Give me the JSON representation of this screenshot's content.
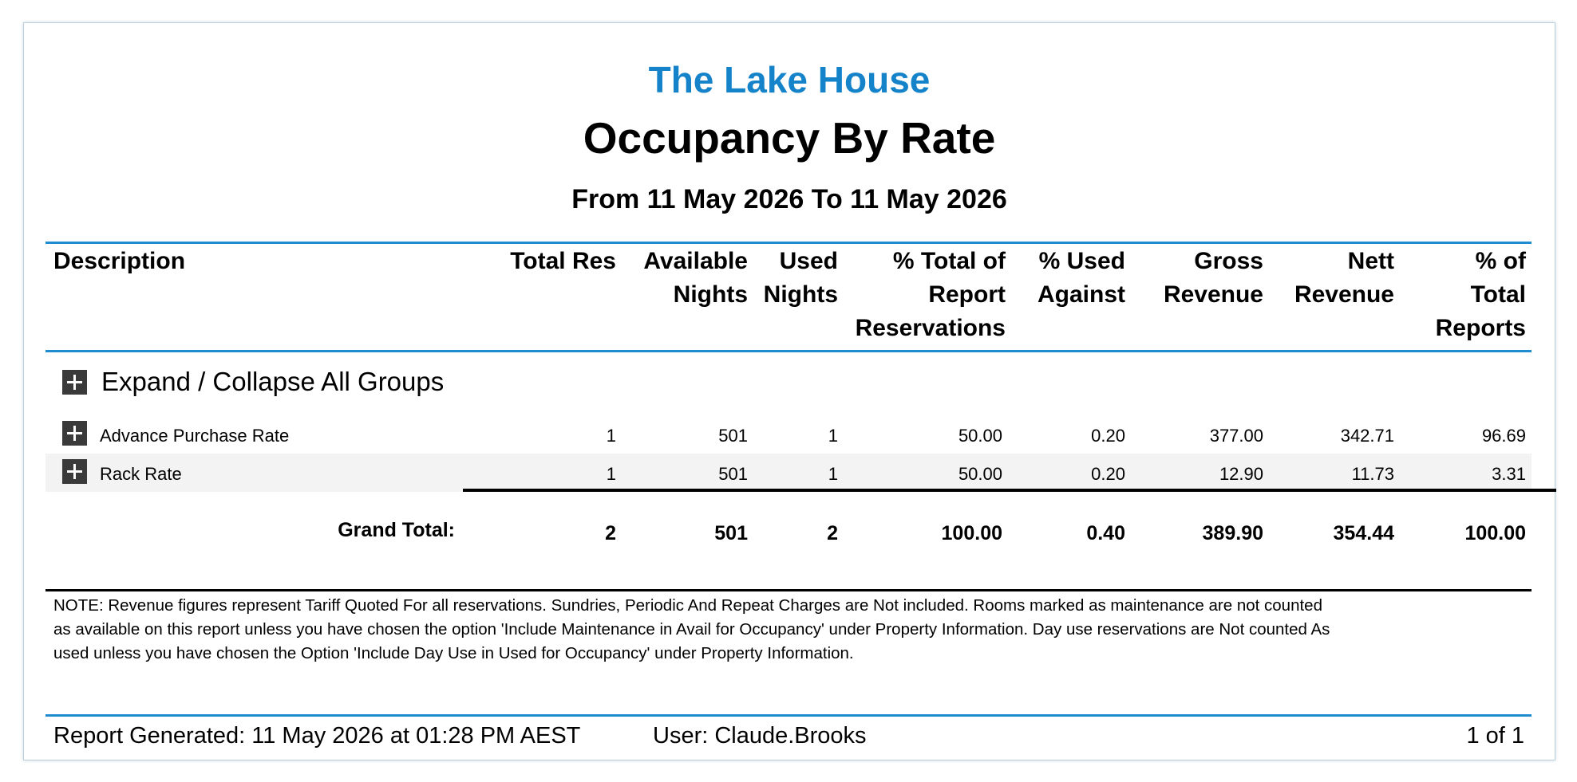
{
  "header": {
    "property_name": "The Lake House",
    "report_title": "Occupancy By Rate",
    "date_range": "From 11 May 2026 To 11 May 2026"
  },
  "columns": {
    "description": "Description",
    "total_res": "Total Res",
    "available_nights": [
      "Available",
      "Nights"
    ],
    "used_nights": [
      "Used",
      "Nights"
    ],
    "pct_total_reservations": [
      "% Total of",
      "Report",
      "Reservations"
    ],
    "pct_used_against": [
      "% Used",
      "Against"
    ],
    "gross_revenue": [
      "Gross",
      "Revenue"
    ],
    "nett_revenue": [
      "Nett",
      "Revenue"
    ],
    "pct_total_reports": [
      "% of",
      "Total",
      "Reports"
    ]
  },
  "expand_all_label": "Expand / Collapse All Groups",
  "rows": [
    {
      "description": "Advance Purchase Rate",
      "total_res": "1",
      "available_nights": "501",
      "used_nights": "1",
      "pct_total_reservations": "50.00",
      "pct_used_against": "0.20",
      "gross_revenue": "377.00",
      "nett_revenue": "342.71",
      "pct_total_reports": "96.69"
    },
    {
      "description": "Rack Rate",
      "total_res": "1",
      "available_nights": "501",
      "used_nights": "1",
      "pct_total_reservations": "50.00",
      "pct_used_against": "0.20",
      "gross_revenue": "12.90",
      "nett_revenue": "11.73",
      "pct_total_reports": "3.31"
    }
  ],
  "grand_total": {
    "label": "Grand Total:",
    "total_res": "2",
    "available_nights": "501",
    "used_nights": "2",
    "pct_total_reservations": "100.00",
    "pct_used_against": "0.40",
    "gross_revenue": "389.90",
    "nett_revenue": "354.44",
    "pct_total_reports": "100.00"
  },
  "note_lines": [
    "NOTE: Revenue figures represent Tariff Quoted For all reservations. Sundries, Periodic And Repeat Charges are Not included. Rooms marked as maintenance are not counted",
    "as available on this report unless you have chosen the option 'Include Maintenance in Avail for Occupancy' under Property Information. Day use reservations are Not counted As",
    "used unless you have chosen the Option 'Include Day Use in Used for Occupancy' under Property Information."
  ],
  "footer": {
    "generated": "Report Generated: 11 May 2026 at 01:28 PM AEST",
    "user": "User: Claude.Brooks",
    "page": "1 of 1"
  },
  "colors": {
    "accent": "#1583c9",
    "rule": "#1f8ccf",
    "alt_row": "#f3f3f3"
  }
}
